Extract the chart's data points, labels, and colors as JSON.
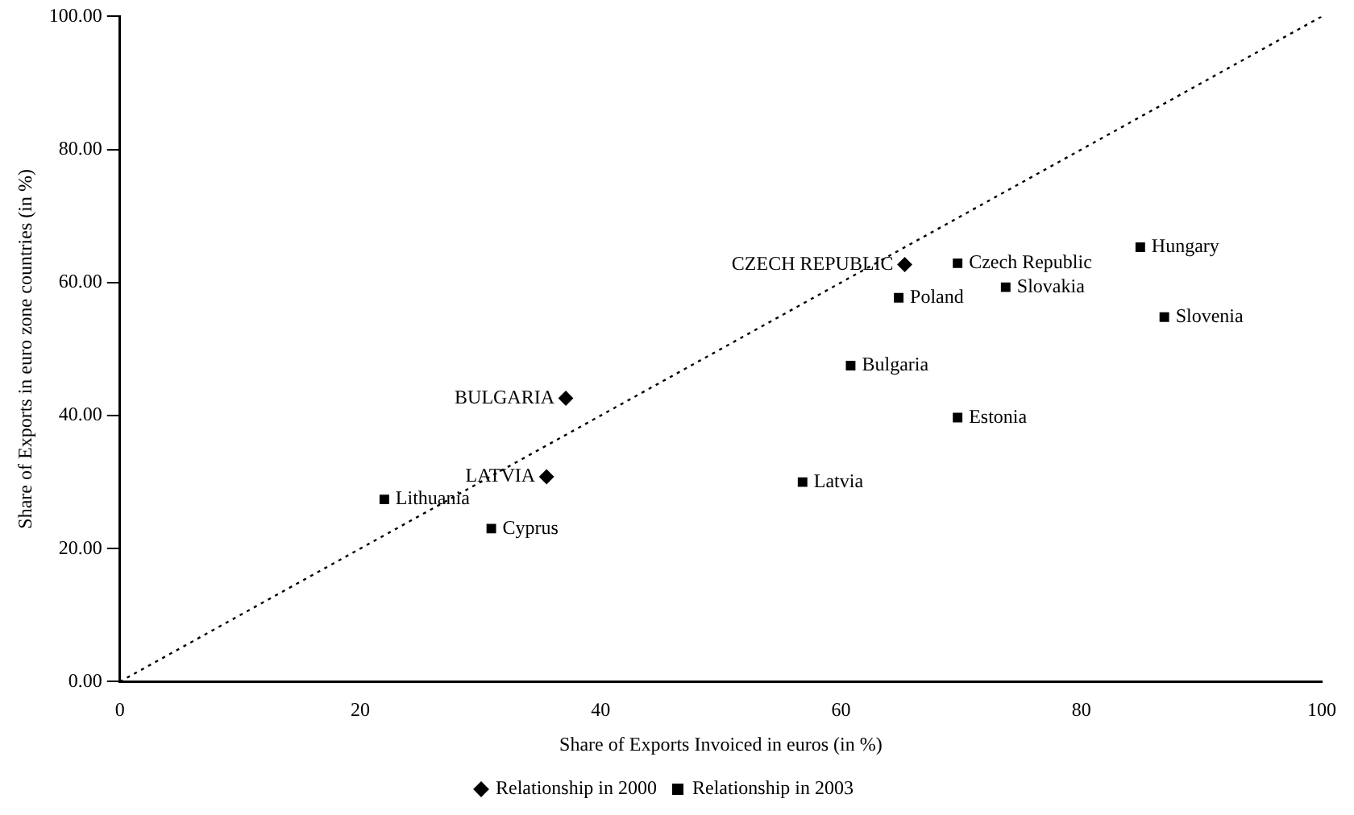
{
  "chart_data": {
    "type": "scatter",
    "xlabel": "Share of Exports Invoiced in euros (in %)",
    "ylabel": "Share of Exports in euro zone countries (in %)",
    "xlim": [
      0,
      100
    ],
    "xticks": [
      0,
      20,
      40,
      60,
      80,
      100
    ],
    "ylim": [
      0,
      100
    ],
    "yticks": [
      {
        "value": 0,
        "label": "0.00"
      },
      {
        "value": 20,
        "label": "20.00"
      },
      {
        "value": 40,
        "label": "40.00"
      },
      {
        "value": 60,
        "label": "60.00"
      },
      {
        "value": 80,
        "label": "80.00"
      },
      {
        "value": 100,
        "label": "100.00"
      }
    ],
    "grid": false,
    "legend": "bottom",
    "series": [
      {
        "name": "Relationship in 2000",
        "color": "#000000",
        "marker": "diamond",
        "x": [
          37.1,
          35.5,
          65.3
        ],
        "values": [
          42.6,
          30.8,
          62.7
        ],
        "value_labels": [
          "BULGARIA",
          "LATVIA",
          "CZECH REPUBLIC"
        ]
      },
      {
        "name": "Relationship in 2003",
        "color": "#000000",
        "marker": "square",
        "x": [
          22.0,
          30.9,
          69.7,
          84.9,
          64.8,
          73.7,
          86.9,
          60.8,
          69.7,
          56.8
        ],
        "values": [
          27.4,
          23.0,
          62.9,
          65.3,
          57.7,
          59.3,
          54.8,
          47.5,
          39.7,
          30.0
        ],
        "value_labels": [
          "Lithuania",
          "Cyprus",
          "Czech Republic",
          "Hungary",
          "Poland",
          "Slovakia",
          "Slovenia",
          "Bulgaria",
          "Estonia",
          "Latvia"
        ]
      },
      {
        "type": "line",
        "color": "#000000",
        "marker": "none",
        "line_style": "dotted",
        "x": [
          0,
          100
        ],
        "values": [
          0,
          100
        ]
      }
    ]
  }
}
